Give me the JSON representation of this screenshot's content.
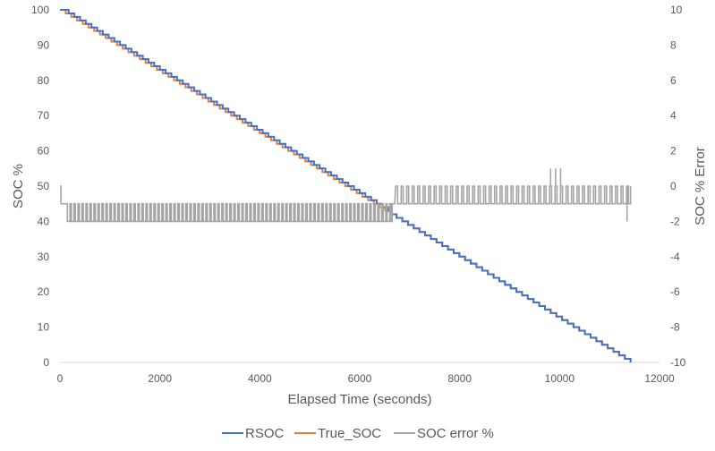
{
  "chart_data": {
    "type": "line",
    "title": "",
    "xlabel": "Elapsed Time (seconds)",
    "ylabel_left": "SOC %",
    "ylabel_right": "SOC % Error",
    "xlim": [
      0,
      12000
    ],
    "ylim_left": [
      0,
      100
    ],
    "ylim_right": [
      -10,
      10
    ],
    "grid": false,
    "legend_position": "bottom",
    "x_ticks": [
      "0",
      "2000",
      "4000",
      "6000",
      "8000",
      "10000",
      "12000"
    ],
    "y_left_ticks": [
      "0",
      "10",
      "20",
      "30",
      "40",
      "50",
      "60",
      "70",
      "80",
      "90",
      "100"
    ],
    "y_right_ticks": [
      "-10",
      "-8",
      "-6",
      "-4",
      "-2",
      "0",
      "2",
      "4",
      "6",
      "8",
      "10"
    ],
    "total_time_s": 11420,
    "series": [
      {
        "name": "RSOC",
        "color": "#4472C4",
        "axis": "left",
        "description": "stepwise 1% decrements",
        "start": 100,
        "end": 0
      },
      {
        "name": "True_SOC",
        "color": "#ED7D31",
        "axis": "left",
        "description": "stepwise 1% decrements, ~1% below RSOC until ~6600 s",
        "start": 100,
        "end": 0
      },
      {
        "name": "SOC error %",
        "color": "#A5A5A5",
        "axis": "right",
        "description": "toggles between -1 and -2 until ~6600 s, between 0 and -1 afterwards, spikes to +1 near 9800–10050 s",
        "phases": [
          {
            "x_start": 0,
            "x_end": 40,
            "low": -1,
            "high": 0
          },
          {
            "x_start": 60,
            "x_end": 6650,
            "low": -2,
            "high": -1
          },
          {
            "x_start": 6700,
            "x_end": 11420,
            "low": -1,
            "high": 0
          }
        ],
        "spikes": [
          {
            "x": 9820,
            "value": 1
          },
          {
            "x": 9920,
            "value": 1
          },
          {
            "x": 10020,
            "value": 1
          },
          {
            "x": 11350,
            "value": -2
          }
        ]
      }
    ]
  }
}
